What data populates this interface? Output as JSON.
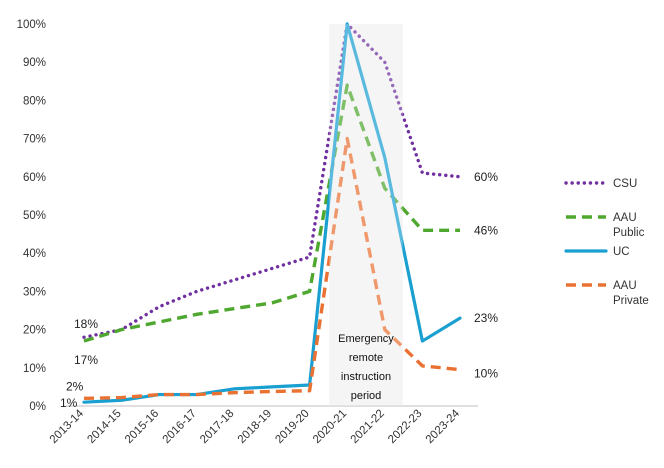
{
  "chart_data": {
    "type": "line",
    "title": "",
    "xlabel": "",
    "ylabel": "",
    "categories": [
      "2013-14",
      "2014-15",
      "2015-16",
      "2016-17",
      "2017-18",
      "2018-19",
      "2019-20",
      "2020-21",
      "2021-22",
      "2022-23",
      "2023-24"
    ],
    "ylim": [
      0,
      100
    ],
    "y_ticks": [
      "0%",
      "10%",
      "20%",
      "30%",
      "40%",
      "50%",
      "60%",
      "70%",
      "80%",
      "90%",
      "100%"
    ],
    "grid": false,
    "legend_position": "right",
    "series": [
      {
        "name": "CSU",
        "color": "#7030a0",
        "dash": "dotted",
        "values": [
          18,
          20,
          26,
          30,
          33,
          36,
          39,
          100,
          90,
          61,
          60
        ]
      },
      {
        "name": "AAU Public",
        "color": "#4ea72e",
        "dash": "dashed",
        "values": [
          17,
          20,
          22,
          24,
          25.5,
          27,
          30,
          84,
          57,
          46,
          46
        ]
      },
      {
        "name": "UC",
        "color": "#1a9fd1",
        "dash": "solid",
        "values": [
          1,
          1.5,
          3,
          3,
          4.5,
          5,
          5.5,
          100,
          65,
          17,
          23
        ]
      },
      {
        "name": "AAU Private",
        "color": "#e97132",
        "dash": "dashed",
        "values": [
          2,
          2.2,
          3,
          3,
          3.5,
          3.8,
          4,
          70,
          20,
          10.5,
          9.5
        ]
      }
    ],
    "highlight": {
      "from": "2020-21",
      "to": "2021-22",
      "label_lines": [
        "Emergency",
        "remote",
        "instruction",
        "period"
      ]
    },
    "start_labels": [
      {
        "series": "CSU",
        "text": "18%"
      },
      {
        "series": "AAU Public",
        "text": "17%"
      },
      {
        "series": "AAU Private",
        "text": "2%"
      },
      {
        "series": "UC",
        "text": "1%"
      }
    ],
    "end_labels": [
      {
        "series": "CSU",
        "text": "60%"
      },
      {
        "series": "AAU Public",
        "text": "46%"
      },
      {
        "series": "UC",
        "text": "23%"
      },
      {
        "series": "AAU Private",
        "text": "10%"
      }
    ],
    "legend": [
      {
        "series": "CSU",
        "lines": [
          "CSU"
        ]
      },
      {
        "series": "AAU Public",
        "lines": [
          "AAU",
          "Public"
        ]
      },
      {
        "series": "UC",
        "lines": [
          "UC"
        ]
      },
      {
        "series": "AAU Private",
        "lines": [
          "AAU",
          "Private"
        ]
      }
    ]
  }
}
